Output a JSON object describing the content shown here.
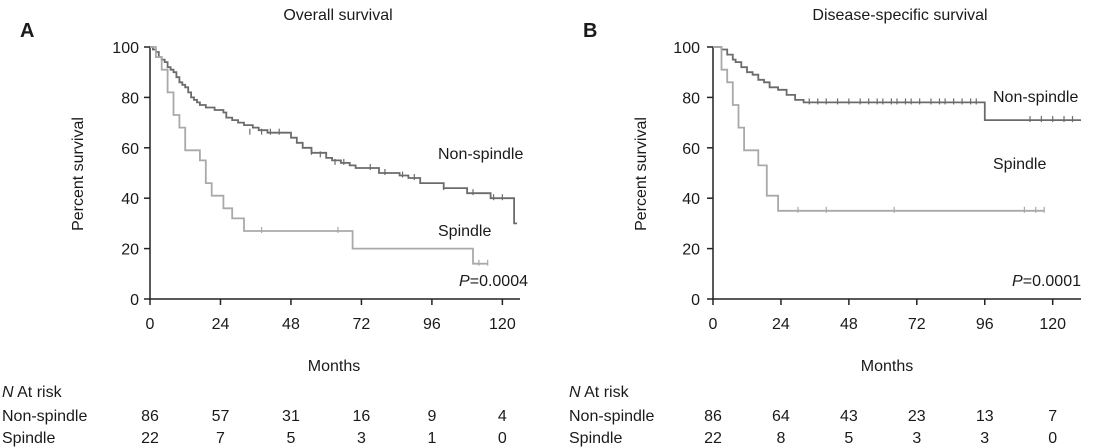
{
  "chart_data": [
    {
      "panel": "A",
      "type": "line",
      "title": "Overall survival",
      "xlabel": "Months",
      "ylabel": "Percent survival",
      "xticks": [
        0,
        24,
        48,
        72,
        96,
        120
      ],
      "yticks": [
        0,
        20,
        40,
        60,
        80,
        100
      ],
      "xlim": [
        0,
        126
      ],
      "ylim": [
        0,
        100
      ],
      "p_prefix": "P",
      "p_value": "=0.0004",
      "series": [
        {
          "name": "Non-spindle",
          "color": "#6b6b6b",
          "steps": [
            [
              0,
              100
            ],
            [
              1,
              99
            ],
            [
              2,
              98
            ],
            [
              3,
              96
            ],
            [
              4,
              95
            ],
            [
              5,
              94
            ],
            [
              6,
              92
            ],
            [
              7,
              91
            ],
            [
              8,
              90
            ],
            [
              9,
              88
            ],
            [
              10,
              86
            ],
            [
              11,
              85
            ],
            [
              12,
              84
            ],
            [
              13,
              82
            ],
            [
              14,
              80
            ],
            [
              15,
              79
            ],
            [
              16,
              78
            ],
            [
              17,
              77
            ],
            [
              19,
              76
            ],
            [
              22,
              75
            ],
            [
              25,
              74
            ],
            [
              26,
              72
            ],
            [
              28,
              71
            ],
            [
              30,
              70
            ],
            [
              32,
              69
            ],
            [
              35,
              68
            ],
            [
              37,
              67
            ],
            [
              40,
              66
            ],
            [
              43,
              66
            ],
            [
              48,
              64
            ],
            [
              50,
              62
            ],
            [
              52,
              60
            ],
            [
              55,
              58
            ],
            [
              60,
              56
            ],
            [
              62,
              55
            ],
            [
              65,
              54
            ],
            [
              68,
              53
            ],
            [
              70,
              52
            ],
            [
              78,
              50
            ],
            [
              85,
              49
            ],
            [
              88,
              48
            ],
            [
              92,
              46
            ],
            [
              100,
              44
            ],
            [
              108,
              42
            ],
            [
              116,
              40
            ],
            [
              124,
              30
            ],
            [
              125,
              30
            ]
          ],
          "censor": [
            [
              34,
              66
            ],
            [
              38,
              66
            ],
            [
              41,
              66
            ],
            [
              44,
              66
            ],
            [
              55,
              58
            ],
            [
              58,
              57
            ],
            [
              63,
              54
            ],
            [
              66,
              54
            ],
            [
              75,
              52
            ],
            [
              80,
              50
            ],
            [
              86,
              49
            ],
            [
              90,
              48
            ],
            [
              100,
              44
            ],
            [
              110,
              42
            ],
            [
              117,
              40
            ],
            [
              120,
              40
            ]
          ]
        },
        {
          "name": "Spindle",
          "color": "#a9a9a9",
          "steps": [
            [
              0,
              100
            ],
            [
              2,
              96
            ],
            [
              4,
              91
            ],
            [
              6,
              82
            ],
            [
              8,
              73
            ],
            [
              10,
              68
            ],
            [
              12,
              59
            ],
            [
              17,
              55
            ],
            [
              19,
              46
            ],
            [
              21,
              41
            ],
            [
              25,
              36
            ],
            [
              28,
              32
            ],
            [
              32,
              27
            ],
            [
              40,
              27
            ],
            [
              66,
              27
            ],
            [
              69,
              20
            ],
            [
              100,
              20
            ],
            [
              110,
              14
            ],
            [
              115,
              14
            ]
          ],
          "censor": [
            [
              38,
              27
            ],
            [
              64,
              27
            ],
            [
              112,
              14
            ],
            [
              115,
              14
            ]
          ]
        }
      ],
      "at_risk": {
        "header_italic": "N",
        "header_rest": " At risk",
        "rows": [
          {
            "label": "Non-spindle",
            "values": [
              "86",
              "57",
              "31",
              "16",
              "9",
              "4"
            ]
          },
          {
            "label": "Spindle",
            "values": [
              "22",
              "7",
              "5",
              "3",
              "1",
              "0"
            ]
          }
        ]
      }
    },
    {
      "panel": "B",
      "type": "line",
      "title": "Disease-specific survival",
      "xlabel": "Months",
      "ylabel": "Percent survival",
      "xticks": [
        0,
        24,
        48,
        72,
        96,
        120
      ],
      "yticks": [
        0,
        20,
        40,
        60,
        80,
        100
      ],
      "xlim": [
        0,
        130
      ],
      "ylim": [
        0,
        100
      ],
      "p_prefix": "P",
      "p_value": "=0.0001",
      "series": [
        {
          "name": "Non-spindle",
          "color": "#6b6b6b",
          "steps": [
            [
              0,
              100
            ],
            [
              3,
              99
            ],
            [
              5,
              97
            ],
            [
              7,
              95
            ],
            [
              8,
              94
            ],
            [
              10,
              92
            ],
            [
              12,
              90
            ],
            [
              14,
              89
            ],
            [
              16,
              87
            ],
            [
              18,
              86
            ],
            [
              20,
              84
            ],
            [
              23,
              83
            ],
            [
              26,
              81
            ],
            [
              29,
              79
            ],
            [
              32,
              78
            ],
            [
              95,
              78
            ],
            [
              96,
              71
            ],
            [
              130,
              71
            ]
          ],
          "censor": [
            [
              34,
              78
            ],
            [
              37,
              78
            ],
            [
              40,
              78
            ],
            [
              44,
              78
            ],
            [
              48,
              78
            ],
            [
              52,
              78
            ],
            [
              55,
              78
            ],
            [
              58,
              78
            ],
            [
              60,
              78
            ],
            [
              63,
              78
            ],
            [
              65,
              78
            ],
            [
              68,
              78
            ],
            [
              70,
              78
            ],
            [
              73,
              78
            ],
            [
              77,
              78
            ],
            [
              80,
              78
            ],
            [
              82,
              78
            ],
            [
              85,
              78
            ],
            [
              88,
              78
            ],
            [
              91,
              78
            ],
            [
              93,
              78
            ],
            [
              112,
              71
            ],
            [
              116,
              71
            ],
            [
              120,
              71
            ],
            [
              124,
              71
            ],
            [
              127,
              71
            ]
          ]
        },
        {
          "name": "Spindle",
          "color": "#a9a9a9",
          "steps": [
            [
              0,
              100
            ],
            [
              3,
              91
            ],
            [
              5,
              86
            ],
            [
              7,
              77
            ],
            [
              9,
              68
            ],
            [
              11,
              59
            ],
            [
              16,
              53
            ],
            [
              19,
              41
            ],
            [
              23,
              35
            ],
            [
              117,
              35
            ]
          ],
          "censor": [
            [
              30,
              35
            ],
            [
              40,
              35
            ],
            [
              64,
              35
            ],
            [
              110,
              35
            ],
            [
              114,
              35
            ],
            [
              117,
              35
            ]
          ]
        }
      ],
      "at_risk": {
        "header_italic": "N",
        "header_rest": " At risk",
        "rows": [
          {
            "label": "Non-spindle",
            "values": [
              "86",
              "64",
              "43",
              "23",
              "13",
              "7"
            ]
          },
          {
            "label": "Spindle",
            "values": [
              "22",
              "8",
              "5",
              "3",
              "3",
              "0"
            ]
          }
        ]
      }
    }
  ]
}
